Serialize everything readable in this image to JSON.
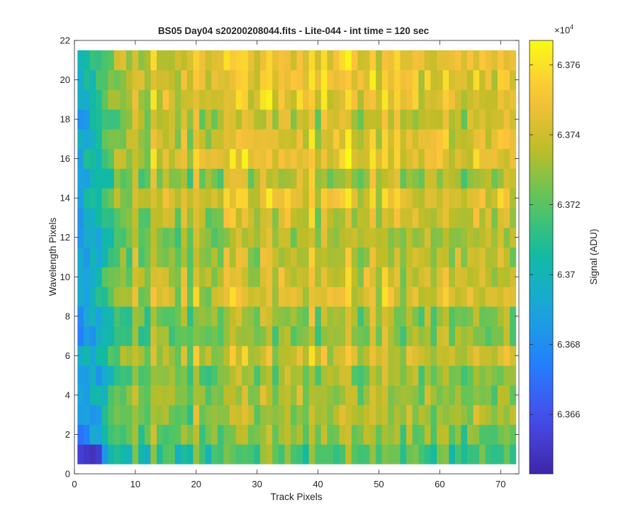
{
  "chart_data": {
    "type": "heatmap",
    "title": "BS05 Day04  s20200208044.fits - Lite-044 - int time = 120 sec",
    "xlabel": "Track Pixels",
    "ylabel": "Wavelength Pixels",
    "xlim": [
      0,
      73
    ],
    "ylim": [
      0,
      22
    ],
    "x_range": [
      1,
      72
    ],
    "y_range": [
      1,
      21
    ],
    "xticks": [
      0,
      10,
      20,
      30,
      40,
      50,
      60,
      70
    ],
    "yticks": [
      0,
      2,
      4,
      6,
      8,
      10,
      12,
      14,
      16,
      18,
      20,
      22
    ],
    "colormap": "parula",
    "colorbar": {
      "label": "Signal (ADU)",
      "exponent_label": "×10",
      "exponent": "4",
      "range": [
        6.3643,
        6.3767
      ],
      "ticks": [
        6.366,
        6.368,
        6.37,
        6.372,
        6.374,
        6.376
      ],
      "tick_labels": [
        "6.366",
        "6.368",
        "6.37",
        "6.372",
        "6.374",
        "6.376"
      ]
    },
    "grid": false
  }
}
